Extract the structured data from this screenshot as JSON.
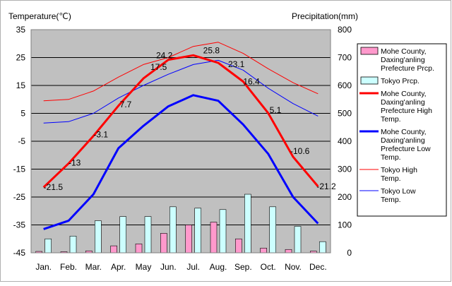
{
  "chart_data": {
    "type": "line",
    "title": "",
    "y_left_label": "Temperature(℃)",
    "y_right_label": "Precipitation(mm)",
    "categories": [
      "Jan.",
      "Feb.",
      "Mar.",
      "Apr.",
      "May",
      "Jun.",
      "Jul.",
      "Aug.",
      "Sep.",
      "Oct.",
      "Nov.",
      "Dec."
    ],
    "y_left_range": [
      -45,
      35
    ],
    "y_left_ticks": [
      35,
      25,
      15,
      5,
      -5,
      -15,
      -25,
      -35,
      -45
    ],
    "y_right_range": [
      0,
      800
    ],
    "y_right_ticks": [
      800,
      700,
      600,
      500,
      400,
      300,
      200,
      100,
      0
    ],
    "grid": true,
    "legend_position": "right",
    "bar_series": [
      {
        "name": "Mohe County, Daxing'anling Prefecture Prcp.",
        "legend_lines": [
          "Mohe County,",
          "Daxing'anling",
          "Prefecture Prcp."
        ],
        "axis": "right",
        "color": "#ff99cc",
        "values": [
          5,
          4,
          7,
          25,
          32,
          70,
          100,
          110,
          50,
          17,
          12,
          6
        ]
      },
      {
        "name": "Tokyo Prcp.",
        "legend_lines": [
          "Tokyo Prcp."
        ],
        "axis": "right",
        "color": "#ccffff",
        "values": [
          50,
          60,
          115,
          130,
          130,
          165,
          160,
          155,
          210,
          165,
          95,
          40
        ]
      }
    ],
    "line_series": [
      {
        "name": "Mohe County, Daxing'anling Prefecture High Temp.",
        "legend_lines": [
          "Mohe County,",
          "Daxing'anling",
          "Prefecture High",
          "Temp."
        ],
        "axis": "left",
        "color": "#ff0000",
        "width": 3,
        "values": [
          -21.5,
          -13,
          -3.1,
          7.7,
          17.5,
          24.2,
          25.8,
          23.1,
          16.4,
          5.1,
          -10.6,
          -21.2
        ],
        "labels": [
          "-21.5",
          "-13",
          "-3.1",
          "7.7",
          "17.5",
          "24.2",
          "25.8",
          "23.1",
          "16.4",
          "5.1",
          "-10.6",
          "-21.2"
        ]
      },
      {
        "name": "Mohe County, Daxing'anling Prefecture Low Temp.",
        "legend_lines": [
          "Mohe County,",
          "Daxing'anling",
          "Prefecture Low",
          "Temp."
        ],
        "axis": "left",
        "color": "#0000ff",
        "width": 3,
        "values": [
          -36.5,
          -33.5,
          -24,
          -7.5,
          0.5,
          7.5,
          11.5,
          9.5,
          1,
          -9.5,
          -25,
          -34.5
        ]
      },
      {
        "name": "Tokyo High Temp.",
        "legend_lines": [
          "Tokyo High",
          "Temp."
        ],
        "axis": "left",
        "color": "#ff0000",
        "width": 1,
        "values": [
          9.5,
          10,
          13,
          18,
          22.5,
          25,
          29,
          30.5,
          26.5,
          21,
          16,
          12
        ]
      },
      {
        "name": "Tokyo Low Temp.",
        "legend_lines": [
          "Tokyo Low",
          "Temp."
        ],
        "axis": "left",
        "color": "#0000ff",
        "width": 1,
        "values": [
          1.5,
          2,
          5,
          10.5,
          15,
          19,
          22.5,
          24,
          20.5,
          14,
          8.5,
          4
        ]
      }
    ]
  }
}
